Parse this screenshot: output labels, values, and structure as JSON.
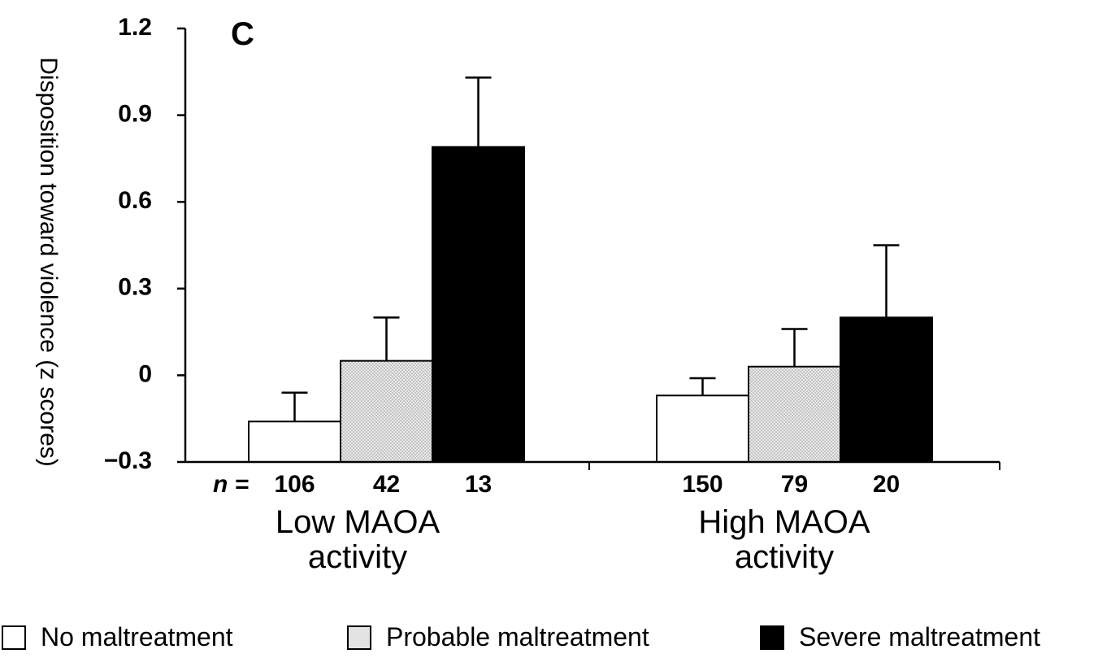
{
  "chart_data": {
    "type": "bar",
    "panel_label": "C",
    "ylabel": "Disposition toward violence (z scores)",
    "ylim": [
      -0.3,
      1.2
    ],
    "yticks": [
      {
        "value": 1.2,
        "label": "1.2"
      },
      {
        "value": 0.9,
        "label": "0.9"
      },
      {
        "value": 0.6,
        "label": "0.6"
      },
      {
        "value": 0.3,
        "label": "0.3"
      },
      {
        "value": 0,
        "label": "0"
      },
      {
        "value": -0.3,
        "label": "−0.3"
      }
    ],
    "grid": false,
    "legend_position": "bottom",
    "groups": [
      {
        "label_line1": "Low MAOA",
        "label_line2": "activity",
        "n_prefix": "n = "
      },
      {
        "label_line1": "High MAOA",
        "label_line2": "activity",
        "n_prefix": ""
      }
    ],
    "series": [
      {
        "name": "No maltreatment",
        "fill": "#ffffff",
        "values": [
          -0.16,
          -0.07
        ],
        "errors": [
          0.1,
          0.06
        ],
        "n": [
          "106",
          "150"
        ]
      },
      {
        "name": "Probable maltreatment",
        "fill": "#e3e3e3",
        "values": [
          0.05,
          0.03
        ],
        "errors": [
          0.15,
          0.13
        ],
        "n": [
          "42",
          "79"
        ]
      },
      {
        "name": "Severe maltreatment",
        "fill": "#000000",
        "values": [
          0.79,
          0.2
        ],
        "errors": [
          0.24,
          0.25
        ],
        "n": [
          "13",
          "20"
        ]
      }
    ]
  }
}
